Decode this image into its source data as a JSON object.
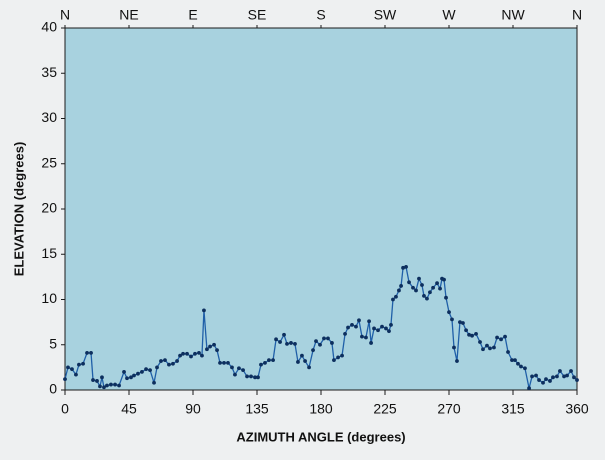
{
  "chart_data": {
    "type": "line",
    "xlabel": "AZIMUTH ANGLE (degrees)",
    "ylabel": "ELEVATION (degrees)",
    "xlim": [
      0,
      360
    ],
    "ylim": [
      0,
      40
    ],
    "xticks": [
      0,
      45,
      90,
      135,
      180,
      225,
      270,
      315,
      360
    ],
    "yticks": [
      0,
      5,
      10,
      15,
      20,
      25,
      30,
      35,
      40
    ],
    "x2ticks": [
      {
        "value": 0,
        "label": "N"
      },
      {
        "value": 45,
        "label": "NE"
      },
      {
        "value": 90,
        "label": "E"
      },
      {
        "value": 135,
        "label": "SE"
      },
      {
        "value": 180,
        "label": "S"
      },
      {
        "value": 225,
        "label": "SW"
      },
      {
        "value": 270,
        "label": "W"
      },
      {
        "value": 315,
        "label": "NW"
      },
      {
        "value": 360,
        "label": "N"
      }
    ],
    "color": "#1f5fa8",
    "x": [
      0,
      2.1,
      4.9,
      7.7,
      9.8,
      12.7,
      15.5,
      18.3,
      19.7,
      22.5,
      24.6,
      26.0,
      27.4,
      29.5,
      32.3,
      35.2,
      38.0,
      41.5,
      43.6,
      46.4,
      48.5,
      51.3,
      54.1,
      57.0,
      59.8,
      62.6,
      64.7,
      67.5,
      70.3,
      73.1,
      75.9,
      78.8,
      80.9,
      83.0,
      85.8,
      88.6,
      91.4,
      94.2,
      96.3,
      97.7,
      99.8,
      102.0,
      104.8,
      106.9,
      109.0,
      111.8,
      114.6,
      117.4,
      119.5,
      122.3,
      125.2,
      128.0,
      130.8,
      133.6,
      135.7,
      137.8,
      140.6,
      143.4,
      146.3,
      148.4,
      151.2,
      154.0,
      156.1,
      158.9,
      161.7,
      163.8,
      166.6,
      168.8,
      171.6,
      174.4,
      176.5,
      179.3,
      182.1,
      184.9,
      187.7,
      189.1,
      192.0,
      194.8,
      196.9,
      199.0,
      201.8,
      204.6,
      206.7,
      208.8,
      211.6,
      213.8,
      215.2,
      217.3,
      220.1,
      222.9,
      225.7,
      227.8,
      229.2,
      230.6,
      232.7,
      234.8,
      236.3,
      237.7,
      239.8,
      241.9,
      244.7,
      246.8,
      248.9,
      251.0,
      252.4,
      254.5,
      256.6,
      258.8,
      261.6,
      263.7,
      265.1,
      266.5,
      267.9,
      270.0,
      272.1,
      273.5,
      275.6,
      277.7,
      279.8,
      282.0,
      284.1,
      286.2,
      289.0,
      291.8,
      293.9,
      296.7,
      298.8,
      301.6,
      303.8,
      306.6,
      309.4,
      311.5,
      314.3,
      316.4,
      318.5,
      320.6,
      323.4,
      326.3,
      328.4,
      331.2,
      333.3,
      336.1,
      338.2,
      341.0,
      343.1,
      345.9,
      348.0,
      350.9,
      353.0,
      355.8,
      357.9,
      360
    ],
    "values": [
      1.2,
      2.5,
      2.3,
      1.7,
      2.8,
      2.9,
      4.1,
      4.1,
      1.1,
      1.0,
      0.4,
      1.4,
      0.3,
      0.5,
      0.6,
      0.6,
      0.5,
      2.0,
      1.3,
      1.4,
      1.6,
      1.8,
      2.0,
      2.3,
      2.2,
      0.8,
      2.5,
      3.2,
      3.3,
      2.8,
      2.9,
      3.2,
      3.8,
      4.0,
      4.0,
      3.7,
      4.0,
      4.1,
      3.8,
      8.8,
      4.5,
      4.8,
      5.0,
      4.4,
      3.0,
      3.0,
      3.0,
      2.5,
      1.7,
      2.4,
      2.2,
      1.5,
      1.5,
      1.4,
      1.4,
      2.8,
      3.0,
      3.3,
      3.3,
      5.6,
      5.3,
      6.1,
      5.1,
      5.2,
      5.1,
      3.1,
      3.8,
      3.2,
      2.5,
      4.4,
      5.4,
      5.0,
      5.7,
      5.7,
      5.2,
      3.3,
      3.6,
      3.8,
      6.2,
      6.9,
      7.2,
      7.0,
      7.7,
      5.9,
      5.8,
      7.6,
      5.2,
      6.8,
      6.6,
      7.0,
      6.8,
      6.5,
      7.2,
      10.0,
      10.3,
      11.0,
      11.5,
      13.5,
      13.6,
      11.9,
      11.3,
      11.0,
      12.3,
      11.6,
      10.4,
      10.1,
      10.8,
      11.3,
      11.8,
      11.2,
      12.3,
      12.2,
      10.2,
      8.6,
      7.8,
      4.7,
      3.2,
      7.5,
      7.4,
      6.6,
      6.1,
      6.0,
      6.2,
      5.3,
      4.5,
      4.9,
      4.6,
      4.7,
      5.8,
      5.6,
      5.9,
      4.2,
      3.3,
      3.3,
      2.9,
      2.6,
      2.4,
      0.2,
      1.5,
      1.6,
      1.1,
      0.8,
      1.2,
      1.0,
      1.4,
      1.5,
      2.1,
      1.5,
      1.6,
      2.1,
      1.4,
      1.1
    ]
  }
}
